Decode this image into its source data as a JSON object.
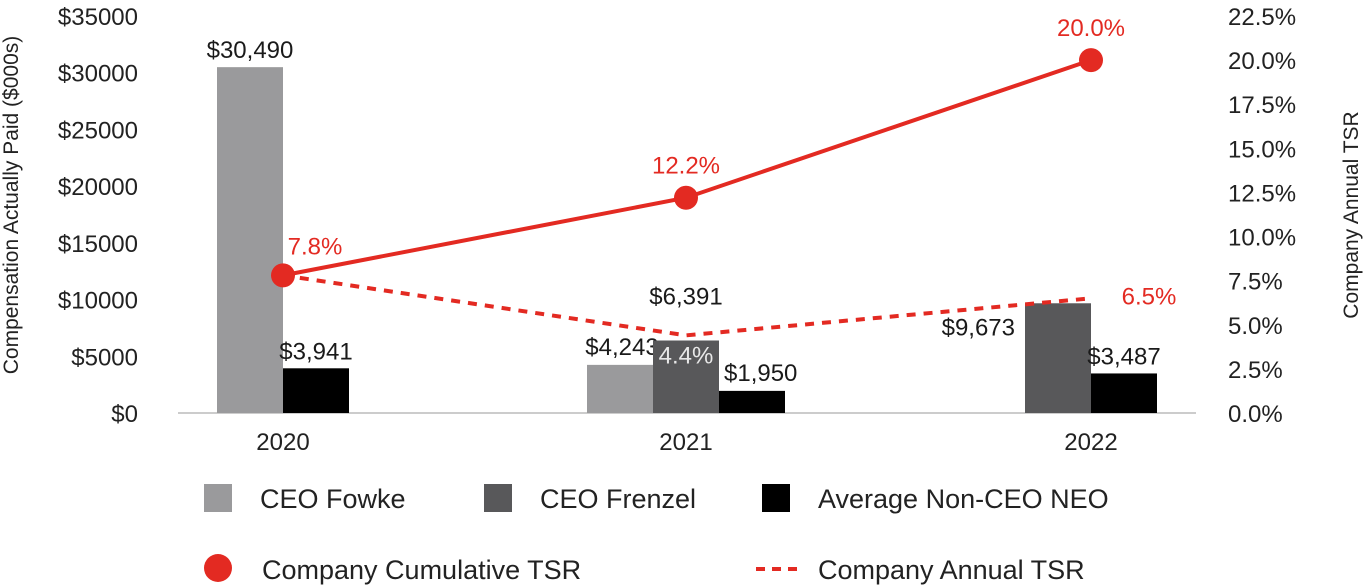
{
  "chart_data": {
    "type": "bar",
    "categories": [
      "2020",
      "2021",
      "2022"
    ],
    "series": [
      {
        "name": "CEO Fowke",
        "kind": "bar",
        "color": "#9a9a9c",
        "values": [
          30490,
          4243,
          null
        ],
        "labels": [
          "$30,490",
          "$4,243",
          ""
        ]
      },
      {
        "name": "CEO Frenzel",
        "kind": "bar",
        "color": "#58585a",
        "values": [
          null,
          6391,
          9673
        ],
        "labels": [
          "",
          "$6,391",
          "$9,673"
        ]
      },
      {
        "name": "Average Non-CEO NEO",
        "kind": "bar",
        "color": "#000000",
        "values": [
          3941,
          1950,
          3487
        ],
        "labels": [
          "$3,941",
          "$1,950",
          "$3,487"
        ]
      },
      {
        "name": "Company Cumulative TSR",
        "kind": "line",
        "axis": "right",
        "color": "#e32a22",
        "marker": "circle",
        "values": [
          7.8,
          12.2,
          20.0
        ],
        "labels": [
          "7.8%",
          "12.2%",
          "20.0%"
        ]
      },
      {
        "name": "Company Annual TSR",
        "kind": "line",
        "axis": "right",
        "style": "dashed",
        "color": "#e32a22",
        "values": [
          7.8,
          4.4,
          6.5
        ],
        "labels": [
          "",
          "4.4%",
          "6.5%"
        ]
      }
    ],
    "ylabel": "Compensation Actually Paid ($000s)",
    "y2label": "Company Annual TSR",
    "ylim": [
      0,
      35000
    ],
    "y2lim": [
      0,
      22.5
    ],
    "yticks": [
      "$0",
      "$5000",
      "$10000",
      "$15000",
      "$20000",
      "$25000",
      "$30000",
      "$35000"
    ],
    "y2ticks": [
      "0.0%",
      "2.5%",
      "5.0%",
      "7.5%",
      "10.0%",
      "12.5%",
      "15.0%",
      "17.5%",
      "20.0%",
      "22.5%"
    ],
    "legend": [
      {
        "label": "CEO Fowke",
        "symbol": "square",
        "color": "#9a9a9c"
      },
      {
        "label": "CEO Frenzel",
        "symbol": "square",
        "color": "#58585a"
      },
      {
        "label": "Average Non-CEO NEO",
        "symbol": "square",
        "color": "#000000"
      },
      {
        "label": "Company Cumulative TSR",
        "symbol": "circle",
        "color": "#e32a22"
      },
      {
        "label": "Company Annual TSR",
        "symbol": "dash",
        "color": "#e32a22"
      }
    ],
    "legend_position": "bottom",
    "grid": false
  }
}
